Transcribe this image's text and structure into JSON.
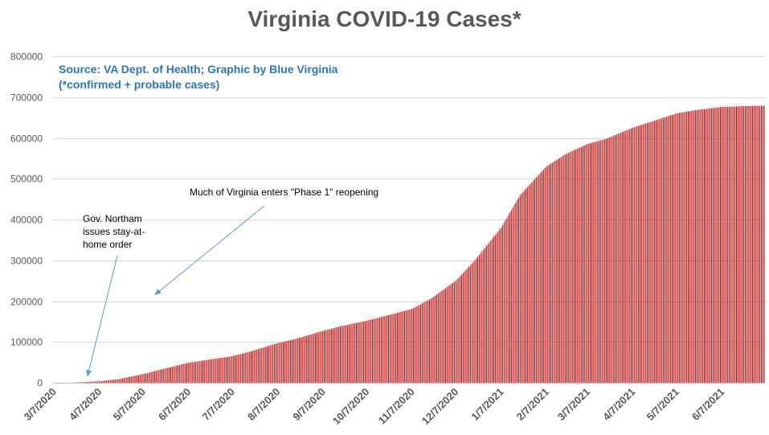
{
  "chart_data": {
    "type": "bar",
    "title": "Virginia COVID-19 Cases*",
    "source_line": "Source: VA Dept. of Health; Graphic by Blue Virginia",
    "subtitle_line": "(*confirmed + probable cases)",
    "xlabel": "",
    "ylabel": "",
    "ylim": [
      0,
      800000
    ],
    "y_ticks": [
      0,
      100000,
      200000,
      300000,
      400000,
      500000,
      600000,
      700000,
      800000
    ],
    "x_tick_labels": [
      "3/7/2020",
      "4/7/2020",
      "5/7/2020",
      "6/7/2020",
      "7/7/2020",
      "8/7/2020",
      "9/7/2020",
      "10/7/2020",
      "11/7/2020",
      "12/7/2020",
      "1/7/2021",
      "2/7/2021",
      "3/7/2021",
      "4/7/2021",
      "5/7/2021",
      "6/7/2021"
    ],
    "x_range": [
      "3/7/2020",
      "7/6/2021"
    ],
    "bar_color": "#c00000",
    "grid": true,
    "series_points": [
      {
        "date": "3/7/2020",
        "value": 0
      },
      {
        "date": "3/20/2020",
        "value": 100
      },
      {
        "date": "4/7/2020",
        "value": 3600
      },
      {
        "date": "4/20/2020",
        "value": 8500
      },
      {
        "date": "5/7/2020",
        "value": 21000
      },
      {
        "date": "5/20/2020",
        "value": 33000
      },
      {
        "date": "6/7/2020",
        "value": 49000
      },
      {
        "date": "6/20/2020",
        "value": 56000
      },
      {
        "date": "7/7/2020",
        "value": 65000
      },
      {
        "date": "7/20/2020",
        "value": 77000
      },
      {
        "date": "8/7/2020",
        "value": 97000
      },
      {
        "date": "8/20/2020",
        "value": 108000
      },
      {
        "date": "9/7/2020",
        "value": 127000
      },
      {
        "date": "9/20/2020",
        "value": 139000
      },
      {
        "date": "10/7/2020",
        "value": 152000
      },
      {
        "date": "10/20/2020",
        "value": 164000
      },
      {
        "date": "11/7/2020",
        "value": 181000
      },
      {
        "date": "11/20/2020",
        "value": 206000
      },
      {
        "date": "12/7/2020",
        "value": 250000
      },
      {
        "date": "12/20/2020",
        "value": 300000
      },
      {
        "date": "1/7/2021",
        "value": 380000
      },
      {
        "date": "1/20/2021",
        "value": 460000
      },
      {
        "date": "2/7/2021",
        "value": 530000
      },
      {
        "date": "2/20/2021",
        "value": 560000
      },
      {
        "date": "3/7/2021",
        "value": 585000
      },
      {
        "date": "3/20/2021",
        "value": 598000
      },
      {
        "date": "4/7/2021",
        "value": 625000
      },
      {
        "date": "4/20/2021",
        "value": 640000
      },
      {
        "date": "5/7/2021",
        "value": 660000
      },
      {
        "date": "5/20/2021",
        "value": 668000
      },
      {
        "date": "6/7/2021",
        "value": 676000
      },
      {
        "date": "6/20/2021",
        "value": 677500
      },
      {
        "date": "7/6/2021",
        "value": 679000
      }
    ],
    "annotations": [
      {
        "text": "Gov. Northam issues stay-at-home order",
        "target_date": "3/30/2020",
        "target_value": 15000
      },
      {
        "text": "Much of Virginia enters \"Phase 1\" reopening",
        "target_date": "5/15/2020",
        "target_value": 215000
      }
    ]
  }
}
